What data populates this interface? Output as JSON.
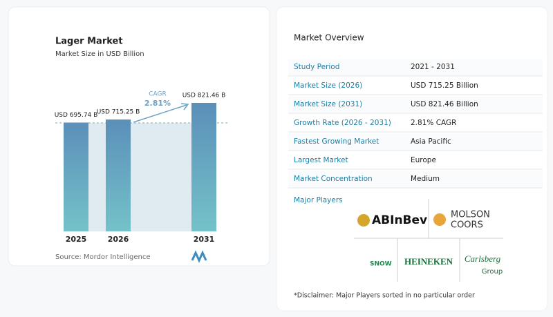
{
  "chart_data": {
    "type": "bar",
    "title": "Lager Market",
    "subtitle": "Market Size in USD Billion",
    "categories": [
      "2025",
      "2026",
      "2031"
    ],
    "values": [
      695.74,
      715.25,
      821.46
    ],
    "value_labels": [
      "USD 695.74 B",
      "USD 715.25 B",
      "USD 821.46 B"
    ],
    "color": "#5b93bb",
    "annotation": {
      "label": "CAGR",
      "value": "2.81%"
    },
    "source": "Source: Mordor Intelligence"
  },
  "overview": {
    "title": "Market Overview",
    "rows": [
      [
        "Study Period",
        "2021 - 2031"
      ],
      [
        "Market Size (2026)",
        "USD 715.25 Billion"
      ],
      [
        "Market Size (2031)",
        "USD 821.46 Billion"
      ],
      [
        "Growth Rate (2026 - 2031)",
        "2.81% CAGR"
      ],
      [
        "Fastest Growing Market",
        "Asia Pacific"
      ],
      [
        "Largest Market",
        "Europe"
      ],
      [
        "Market Concentration",
        "Medium"
      ]
    ],
    "players_title": "Major Players",
    "players": [
      "ABInBev",
      "MOLSON",
      "COORS",
      "SNOW",
      "HEINEKEN",
      "Carlsberg",
      "Group"
    ],
    "disclaimer": "*Disclaimer: Major Players sorted in no particular order"
  }
}
